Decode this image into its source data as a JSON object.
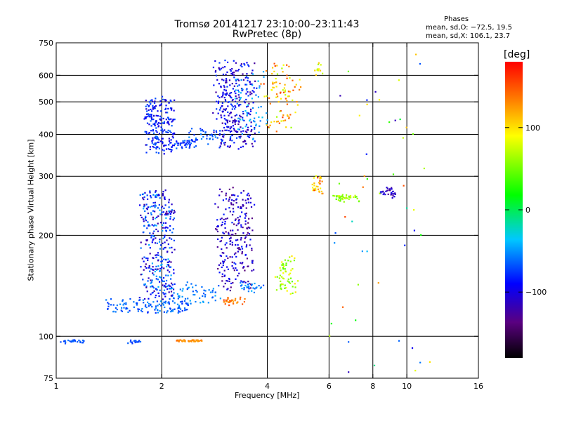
{
  "header": {
    "line1": "Tromsø 20141217 23:10:00–23:11:43",
    "line2": "RwPretec (8p)"
  },
  "phase_info": {
    "title": "Phases",
    "line_o": "mean, sd,O: −72.5, 19.5",
    "line_x": "mean, sd,X: 106.1, 23.7"
  },
  "colorbar": {
    "label": "[deg]",
    "ticks": [
      {
        "value": 100,
        "label": "100"
      },
      {
        "value": 0,
        "label": "0"
      },
      {
        "value": -100,
        "label": "−100"
      }
    ],
    "range": [
      -180,
      180
    ]
  },
  "chart_data": {
    "type": "scatter",
    "title": "Tromsø 20141217 23:10:00–23:11:43",
    "subtitle": "RwPretec (8p)",
    "xlabel": "Frequency [MHz]",
    "ylabel": "Stationary phase Virtual Height [km]",
    "xscale": "log",
    "yscale": "log",
    "xlim": [
      1,
      16
    ],
    "ylim": [
      75,
      750
    ],
    "xticks": [
      {
        "value": 1,
        "label": "1"
      },
      {
        "value": 2,
        "label": "2"
      },
      {
        "value": 4,
        "label": "4"
      },
      {
        "value": 6,
        "label": "6"
      },
      {
        "value": 8,
        "label": "8"
      },
      {
        "value": 10,
        "label": "10"
      },
      {
        "value": 16,
        "label": "16"
      }
    ],
    "yticks": [
      {
        "value": 75,
        "label": "75"
      },
      {
        "value": 100,
        "label": "100"
      },
      {
        "value": 200,
        "label": "200"
      },
      {
        "value": 300,
        "label": "300"
      },
      {
        "value": 400,
        "label": "400"
      },
      {
        "value": 500,
        "label": "500"
      },
      {
        "value": 600,
        "label": "600"
      },
      {
        "value": 750,
        "label": "750"
      }
    ],
    "grid_x": [
      2,
      4,
      6,
      8,
      10
    ],
    "grid_y": [
      100,
      200,
      300,
      400,
      500,
      600
    ],
    "color_by": "phase [deg]",
    "clusters": [
      {
        "f0": 1.0,
        "f1": 1.25,
        "h0": 96,
        "h1": 97,
        "n": 24,
        "phase": [
          -75,
          -60
        ],
        "spread": 0.01
      },
      {
        "f0": 1.6,
        "f1": 1.75,
        "h0": 96,
        "h1": 97,
        "n": 16,
        "phase": [
          -80,
          -60
        ],
        "spread": 0.01
      },
      {
        "f0": 2.2,
        "f1": 2.6,
        "h0": 97,
        "h1": 97,
        "n": 40,
        "phase": [
          120,
          145
        ],
        "spread": 0.006
      },
      {
        "f0": 1.4,
        "f1": 2.4,
        "h0": 118,
        "h1": 128,
        "n": 120,
        "phase": [
          -80,
          -50
        ],
        "spread": 0.02
      },
      {
        "f0": 2.1,
        "f1": 2.9,
        "h0": 128,
        "h1": 142,
        "n": 60,
        "phase": [
          -70,
          -40
        ],
        "spread": 0.03
      },
      {
        "f0": 1.75,
        "f1": 2.15,
        "h0": 130,
        "h1": 270,
        "n": 330,
        "phase": [
          -130,
          -40
        ],
        "spread": 0.02
      },
      {
        "f0": 1.8,
        "f1": 2.15,
        "h0": 355,
        "h1": 510,
        "n": 210,
        "phase": [
          -110,
          -60
        ],
        "spread": 0.02
      },
      {
        "f0": 2.15,
        "f1": 2.5,
        "h0": 370,
        "h1": 380,
        "n": 40,
        "phase": [
          -90,
          -60
        ],
        "spread": 0.02
      },
      {
        "f0": 2.4,
        "f1": 3.0,
        "h0": 380,
        "h1": 420,
        "n": 40,
        "phase": [
          -80,
          -50
        ],
        "spread": 0.02
      },
      {
        "f0": 2.9,
        "f1": 3.6,
        "h0": 140,
        "h1": 270,
        "n": 240,
        "phase": [
          -140,
          -80
        ],
        "spread": 0.03
      },
      {
        "f0": 2.9,
        "f1": 3.6,
        "h0": 370,
        "h1": 650,
        "n": 300,
        "phase": [
          -130,
          -70
        ],
        "spread": 0.04
      },
      {
        "f0": 3.0,
        "f1": 3.5,
        "h0": 125,
        "h1": 130,
        "n": 30,
        "phase": [
          120,
          160
        ],
        "spread": 0.01
      },
      {
        "f0": 3.3,
        "f1": 3.9,
        "h0": 135,
        "h1": 145,
        "n": 30,
        "phase": [
          -80,
          -40
        ],
        "spread": 0.02
      },
      {
        "f0": 3.2,
        "f1": 3.9,
        "h0": 380,
        "h1": 600,
        "n": 60,
        "phase": [
          -60,
          -30
        ],
        "spread": 0.03
      },
      {
        "f0": 4.0,
        "f1": 4.8,
        "h0": 420,
        "h1": 640,
        "n": 90,
        "phase": [
          60,
          160
        ],
        "spread": 0.05
      },
      {
        "f0": 4.3,
        "f1": 4.8,
        "h0": 135,
        "h1": 170,
        "n": 60,
        "phase": [
          40,
          100
        ],
        "spread": 0.03
      },
      {
        "f0": 5.4,
        "f1": 5.7,
        "h0": 270,
        "h1": 305,
        "n": 30,
        "phase": [
          80,
          170
        ],
        "spread": 0.02
      },
      {
        "f0": 5.5,
        "f1": 5.7,
        "h0": 600,
        "h1": 650,
        "n": 12,
        "phase": [
          60,
          110
        ],
        "spread": 0.02
      },
      {
        "f0": 6.2,
        "f1": 7.2,
        "h0": 255,
        "h1": 262,
        "n": 40,
        "phase": [
          40,
          80
        ],
        "spread": 0.02
      },
      {
        "f0": 8.5,
        "f1": 9.2,
        "h0": 262,
        "h1": 275,
        "n": 30,
        "phase": [
          -130,
          -90
        ],
        "spread": 0.02
      },
      {
        "f0": 6.0,
        "f1": 12.0,
        "h0": 78,
        "h1": 700,
        "n": 50,
        "phase": [
          -120,
          160
        ],
        "spread": 0.0
      }
    ]
  }
}
